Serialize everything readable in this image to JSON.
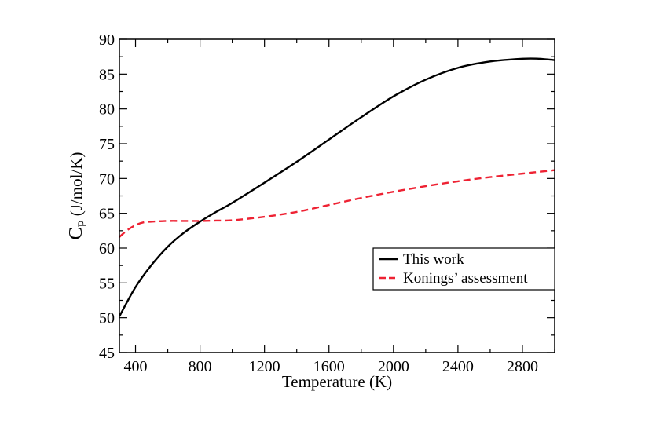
{
  "chart_data": {
    "type": "line",
    "title": "",
    "xlabel": "Temperature (K)",
    "ylabel": {
      "main": "C",
      "sub": "P",
      "rest": " (J/mol/K)"
    },
    "xlim": [
      300,
      3000
    ],
    "ylim": [
      45,
      90
    ],
    "xticks": [
      400,
      800,
      1200,
      1600,
      2000,
      2400,
      2800
    ],
    "yticks": [
      45,
      50,
      55,
      60,
      65,
      70,
      75,
      80,
      85,
      90
    ],
    "grid": false,
    "legend_position": "lower-right",
    "series": [
      {
        "name": "This work",
        "color": "#000000",
        "style": "solid",
        "x": [
          300,
          400,
          500,
          600,
          700,
          800,
          900,
          1000,
          1200,
          1400,
          1600,
          1800,
          2000,
          2200,
          2400,
          2600,
          2800,
          2900,
          3000
        ],
        "y": [
          50.2,
          54.4,
          57.6,
          60.2,
          62.2,
          63.8,
          65.2,
          66.5,
          69.4,
          72.4,
          75.6,
          78.8,
          81.8,
          84.2,
          85.9,
          86.8,
          87.2,
          87.2,
          87.0
        ]
      },
      {
        "name": "Konings’ assessment",
        "color": "#ee2233",
        "style": "dashed",
        "x": [
          300,
          350,
          400,
          450,
          500,
          600,
          700,
          800,
          900,
          1000,
          1200,
          1400,
          1600,
          1800,
          2000,
          2200,
          2400,
          2600,
          2800,
          3000
        ],
        "y": [
          61.6,
          62.6,
          63.3,
          63.7,
          63.8,
          63.9,
          63.9,
          63.9,
          63.95,
          64.0,
          64.5,
          65.2,
          66.2,
          67.2,
          68.1,
          68.9,
          69.6,
          70.2,
          70.7,
          71.2
        ]
      }
    ]
  }
}
